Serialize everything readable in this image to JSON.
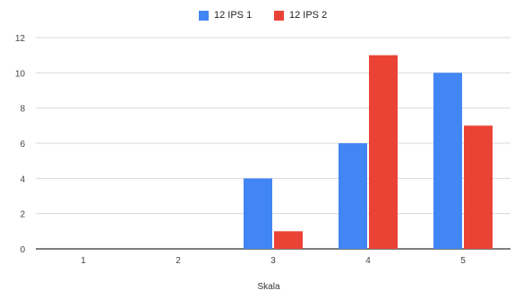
{
  "chart_data": {
    "type": "bar",
    "title": "",
    "xlabel": "Skala",
    "ylabel": "",
    "categories": [
      "1",
      "2",
      "3",
      "4",
      "5"
    ],
    "series": [
      {
        "name": "12 IPS 1",
        "values": [
          0,
          0,
          4,
          6,
          10
        ],
        "color": "#4285F4"
      },
      {
        "name": "12 IPS 2",
        "values": [
          0,
          0,
          1,
          11,
          7
        ],
        "color": "#EA4335"
      }
    ],
    "ylim": [
      0,
      12
    ],
    "yticks": [
      0,
      2,
      4,
      6,
      8,
      10,
      12
    ],
    "grid": true,
    "legend_position": "top"
  }
}
